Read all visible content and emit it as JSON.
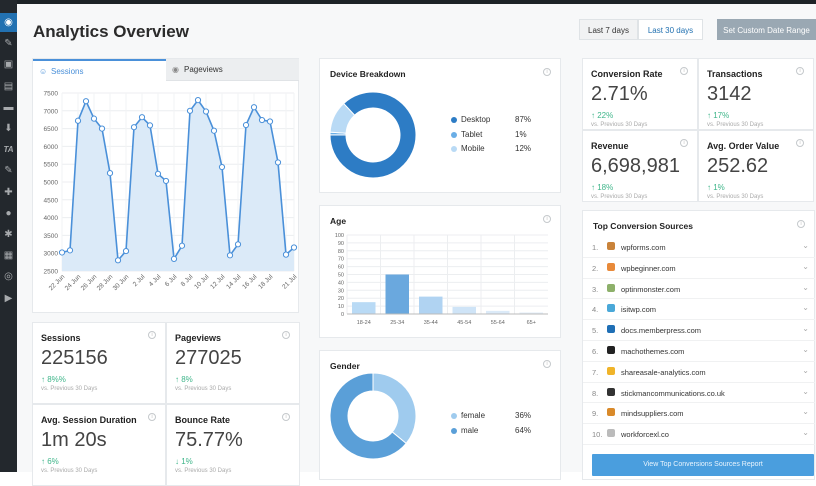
{
  "header": {
    "title": "Analytics Overview",
    "date_buttons": [
      "Last 7 days",
      "Last 30 days"
    ],
    "active_range": "Last 30 days",
    "custom_range": "Set Custom Date Range"
  },
  "sidebar": {
    "icons": [
      "dashboard-icon",
      "pin-icon",
      "media-icon",
      "pages-icon",
      "comments-icon",
      "download-icon",
      "ta-icon",
      "pin-icon",
      "plugins-icon",
      "users-icon",
      "tools-icon",
      "settings-icon",
      "analytics-icon",
      "play-icon"
    ],
    "ta_label": "TA"
  },
  "traffic_chart": {
    "tabs": [
      "Sessions",
      "Pageviews"
    ],
    "active_tab": "Sessions"
  },
  "chart_data": [
    {
      "type": "area",
      "ylim": [
        2500,
        7500
      ],
      "yticks": [
        2500,
        3000,
        3500,
        4000,
        4500,
        5000,
        5500,
        6000,
        6500,
        7000,
        7500
      ],
      "x": [
        "22 Jun",
        "23 Jun",
        "24 Jun",
        "25 Jun",
        "26 Jun",
        "27 Jun",
        "28 Jun",
        "29 Jun",
        "30 Jun",
        "1 Jul",
        "2 Jul",
        "3 Jul",
        "4 Jul",
        "5 Jul",
        "6 Jul",
        "7 Jul",
        "8 Jul",
        "9 Jul",
        "10 Jul",
        "11 Jul",
        "12 Jul",
        "13 Jul",
        "14 Jul",
        "15 Jul",
        "16 Jul",
        "17 Jul",
        "18 Jul",
        "19 Jul",
        "20 Jul",
        "21 Jul"
      ],
      "xtick_labels": [
        "22 Jun",
        "24 Jun",
        "26 Jun",
        "28 Jun",
        "30 Jun",
        "2 Jul",
        "4 Jul",
        "6 Jul",
        "8 Jul",
        "10 Jul",
        "12 Jul",
        "14 Jul",
        "16 Jul",
        "18 Jul",
        "21 Jul"
      ],
      "values": [
        3020,
        3080,
        6720,
        7270,
        6780,
        6500,
        5250,
        2800,
        3060,
        6540,
        6820,
        6590,
        5230,
        5030,
        2840,
        3210,
        7000,
        7300,
        6980,
        6440,
        5420,
        2940,
        3250,
        6600,
        7100,
        6740,
        6700,
        5550,
        2960,
        3160
      ],
      "grid": true,
      "color": "#4a90d9"
    },
    {
      "type": "pie",
      "title": "Device Breakdown",
      "categories": [
        "Desktop",
        "Tablet",
        "Mobile"
      ],
      "values": [
        87,
        1,
        12
      ],
      "labels": [
        "87%",
        "1%",
        "12%"
      ],
      "colors": [
        "#2d7cc5",
        "#6aaee6",
        "#b9daf5"
      ],
      "legend": "right"
    },
    {
      "type": "bar",
      "title": "Age",
      "categories": [
        "18-24",
        "25-34",
        "35-44",
        "45-54",
        "55-64",
        "65+"
      ],
      "values": [
        15,
        50,
        22,
        9,
        4,
        2
      ],
      "ylim": [
        0,
        100
      ],
      "yticks": [
        0,
        10,
        20,
        30,
        40,
        50,
        60,
        70,
        80,
        90,
        100
      ],
      "grid": true
    },
    {
      "type": "pie",
      "title": "Gender",
      "categories": [
        "female",
        "male"
      ],
      "values": [
        36,
        64
      ],
      "labels": [
        "36%",
        "64%"
      ],
      "colors": [
        "#9fcbee",
        "#5a9fd8"
      ],
      "legend": "right"
    }
  ],
  "stats_left": [
    {
      "label": "Sessions",
      "value": "225156",
      "change": "8%%",
      "dir": "up",
      "vs": "vs. Previous 30 Days"
    },
    {
      "label": "Pageviews",
      "value": "277025",
      "change": "8%",
      "dir": "up",
      "vs": "vs. Previous 30 Days"
    },
    {
      "label": "Avg. Session Duration",
      "value": "1m 20s",
      "change": "6%",
      "dir": "up",
      "vs": "vs. Previous 30 Days"
    },
    {
      "label": "Bounce Rate",
      "value": "75.77%",
      "change": "1%",
      "dir": "down",
      "vs": "vs. Previous 30 Days"
    }
  ],
  "stats_right": [
    {
      "label": "Conversion Rate",
      "value": "2.71%",
      "change": "22%",
      "dir": "up",
      "vs": "vs. Previous 30 Days"
    },
    {
      "label": "Transactions",
      "value": "3142",
      "change": "17%",
      "dir": "up",
      "vs": "vs. Previous 30 Days"
    },
    {
      "label": "Revenue",
      "value": "6,698,981",
      "change": "18%",
      "dir": "up",
      "vs": "vs. Previous 30 Days"
    },
    {
      "label": "Avg. Order Value",
      "value": "252.62",
      "change": "1%",
      "dir": "up",
      "vs": "vs. Previous 30 Days"
    }
  ],
  "sources": {
    "title": "Top Conversion Sources",
    "items": [
      {
        "n": "1.",
        "domain": "wpforms.com",
        "color": "#c9833a"
      },
      {
        "n": "2.",
        "domain": "wpbeginner.com",
        "color": "#e88a3a"
      },
      {
        "n": "3.",
        "domain": "optinmonster.com",
        "color": "#8db06a"
      },
      {
        "n": "4.",
        "domain": "isitwp.com",
        "color": "#4aa8d8"
      },
      {
        "n": "5.",
        "domain": "docs.memberpress.com",
        "color": "#1f6fb5"
      },
      {
        "n": "6.",
        "domain": "machothemes.com",
        "color": "#222222"
      },
      {
        "n": "7.",
        "domain": "shareasale-analytics.com",
        "color": "#f0b429"
      },
      {
        "n": "8.",
        "domain": "stickmancommunications.co.uk",
        "color": "#333333"
      },
      {
        "n": "9.",
        "domain": "mindsuppliers.com",
        "color": "#d98a2a"
      },
      {
        "n": "10.",
        "domain": "workforcexl.co",
        "color": "#bbbbbb"
      }
    ],
    "button": "View Top Conversions Sources Report"
  }
}
